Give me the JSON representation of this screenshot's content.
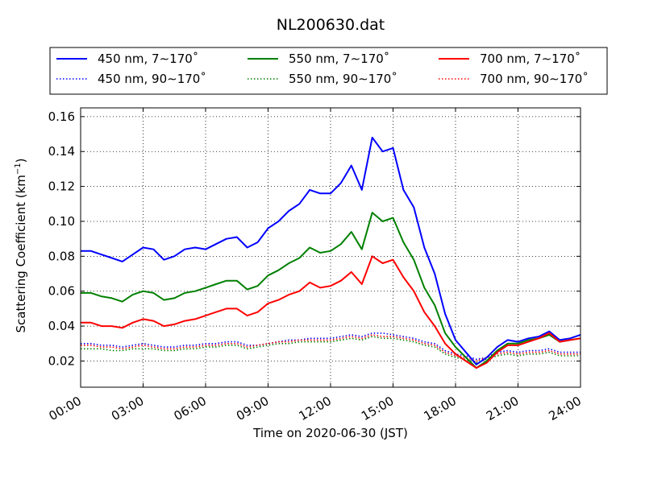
{
  "chart_data": {
    "type": "line",
    "title": "NL200630.dat",
    "xlabel": "Time on 2020-06-30 (JST)",
    "ylabel_main": "Scattering Coefficient (km",
    "ylabel_sup": "−1",
    "ylabel_end": ")",
    "x_unit": "hour of day",
    "xlim": [
      0,
      24
    ],
    "ylim": [
      0.005,
      0.165
    ],
    "x_ticks": [
      0,
      3,
      6,
      9,
      12,
      15,
      18,
      21,
      24
    ],
    "x_tick_labels": [
      "00:00",
      "03:00",
      "06:00",
      "09:00",
      "12:00",
      "15:00",
      "18:00",
      "21:00",
      "24:00"
    ],
    "y_ticks": [
      0.02,
      0.04,
      0.06,
      0.08,
      0.1,
      0.12,
      0.14,
      0.16
    ],
    "y_tick_labels": [
      "0.02",
      "0.04",
      "0.06",
      "0.08",
      "0.10",
      "0.12",
      "0.14",
      "0.16"
    ],
    "grid": true,
    "legend_position": "top, above plot",
    "x": [
      0,
      0.5,
      1,
      1.5,
      2,
      2.5,
      3,
      3.5,
      4,
      4.5,
      5,
      5.5,
      6,
      6.5,
      7,
      7.5,
      8,
      8.5,
      9,
      9.5,
      10,
      10.5,
      11,
      11.5,
      12,
      12.5,
      13,
      13.5,
      14,
      14.5,
      15,
      15.5,
      16,
      16.5,
      17,
      17.5,
      18,
      18.5,
      19,
      19.5,
      20,
      20.5,
      21,
      21.5,
      22,
      22.5,
      23,
      23.5,
      24
    ],
    "series": [
      {
        "name": "450 nm, 7∼170˚",
        "color": "#0000ff",
        "style": "solid",
        "values": [
          0.083,
          0.083,
          0.081,
          0.079,
          0.077,
          0.081,
          0.085,
          0.084,
          0.078,
          0.08,
          0.084,
          0.085,
          0.084,
          0.087,
          0.09,
          0.091,
          0.085,
          0.088,
          0.096,
          0.1,
          0.106,
          0.11,
          0.118,
          0.116,
          0.116,
          0.122,
          0.132,
          0.118,
          0.148,
          0.14,
          0.142,
          0.118,
          0.108,
          0.085,
          0.07,
          0.047,
          0.032,
          0.025,
          0.018,
          0.022,
          0.028,
          0.032,
          0.031,
          0.033,
          0.034,
          0.037,
          0.032,
          0.033,
          0.035
        ]
      },
      {
        "name": "450 nm, 90∼170˚",
        "color": "#0000ff",
        "style": "dotted",
        "values": [
          0.03,
          0.03,
          0.029,
          0.029,
          0.028,
          0.029,
          0.03,
          0.029,
          0.028,
          0.028,
          0.029,
          0.029,
          0.03,
          0.03,
          0.031,
          0.031,
          0.029,
          0.029,
          0.03,
          0.031,
          0.032,
          0.032,
          0.033,
          0.033,
          0.033,
          0.034,
          0.035,
          0.034,
          0.036,
          0.036,
          0.035,
          0.034,
          0.033,
          0.031,
          0.03,
          0.026,
          0.024,
          0.023,
          0.021,
          0.022,
          0.025,
          0.026,
          0.025,
          0.026,
          0.026,
          0.027,
          0.025,
          0.025,
          0.025
        ]
      },
      {
        "name": "550 nm, 7∼170˚",
        "color": "#008000",
        "style": "solid",
        "values": [
          0.059,
          0.059,
          0.057,
          0.056,
          0.054,
          0.058,
          0.06,
          0.059,
          0.055,
          0.056,
          0.059,
          0.06,
          0.062,
          0.064,
          0.066,
          0.066,
          0.061,
          0.063,
          0.069,
          0.072,
          0.076,
          0.079,
          0.085,
          0.082,
          0.083,
          0.087,
          0.094,
          0.084,
          0.105,
          0.1,
          0.102,
          0.088,
          0.078,
          0.062,
          0.052,
          0.036,
          0.028,
          0.022,
          0.016,
          0.02,
          0.026,
          0.03,
          0.03,
          0.032,
          0.033,
          0.035,
          0.031,
          0.032,
          0.033
        ]
      },
      {
        "name": "550 nm, 90∼170˚",
        "color": "#008000",
        "style": "dotted",
        "values": [
          0.027,
          0.027,
          0.027,
          0.026,
          0.026,
          0.027,
          0.027,
          0.027,
          0.026,
          0.026,
          0.027,
          0.027,
          0.028,
          0.028,
          0.029,
          0.029,
          0.027,
          0.028,
          0.029,
          0.03,
          0.03,
          0.031,
          0.031,
          0.031,
          0.031,
          0.032,
          0.033,
          0.032,
          0.034,
          0.033,
          0.033,
          0.032,
          0.031,
          0.029,
          0.028,
          0.024,
          0.022,
          0.021,
          0.019,
          0.021,
          0.023,
          0.024,
          0.023,
          0.024,
          0.024,
          0.025,
          0.023,
          0.023,
          0.023
        ]
      },
      {
        "name": "700 nm, 7∼170˚",
        "color": "#ff0000",
        "style": "solid",
        "values": [
          0.042,
          0.042,
          0.04,
          0.04,
          0.039,
          0.042,
          0.044,
          0.043,
          0.04,
          0.041,
          0.043,
          0.044,
          0.046,
          0.048,
          0.05,
          0.05,
          0.046,
          0.048,
          0.053,
          0.055,
          0.058,
          0.06,
          0.065,
          0.062,
          0.063,
          0.066,
          0.071,
          0.064,
          0.08,
          0.076,
          0.078,
          0.068,
          0.06,
          0.048,
          0.04,
          0.03,
          0.024,
          0.02,
          0.016,
          0.019,
          0.025,
          0.029,
          0.029,
          0.031,
          0.033,
          0.036,
          0.031,
          0.032,
          0.033
        ]
      },
      {
        "name": "700 nm, 90∼170˚",
        "color": "#ff0000",
        "style": "dotted",
        "values": [
          0.029,
          0.029,
          0.028,
          0.028,
          0.027,
          0.028,
          0.029,
          0.028,
          0.027,
          0.027,
          0.028,
          0.028,
          0.029,
          0.029,
          0.03,
          0.03,
          0.028,
          0.029,
          0.03,
          0.031,
          0.031,
          0.032,
          0.032,
          0.032,
          0.032,
          0.033,
          0.034,
          0.033,
          0.035,
          0.034,
          0.034,
          0.033,
          0.032,
          0.03,
          0.029,
          0.025,
          0.023,
          0.022,
          0.02,
          0.022,
          0.024,
          0.025,
          0.024,
          0.025,
          0.025,
          0.026,
          0.024,
          0.024,
          0.024
        ]
      }
    ]
  }
}
